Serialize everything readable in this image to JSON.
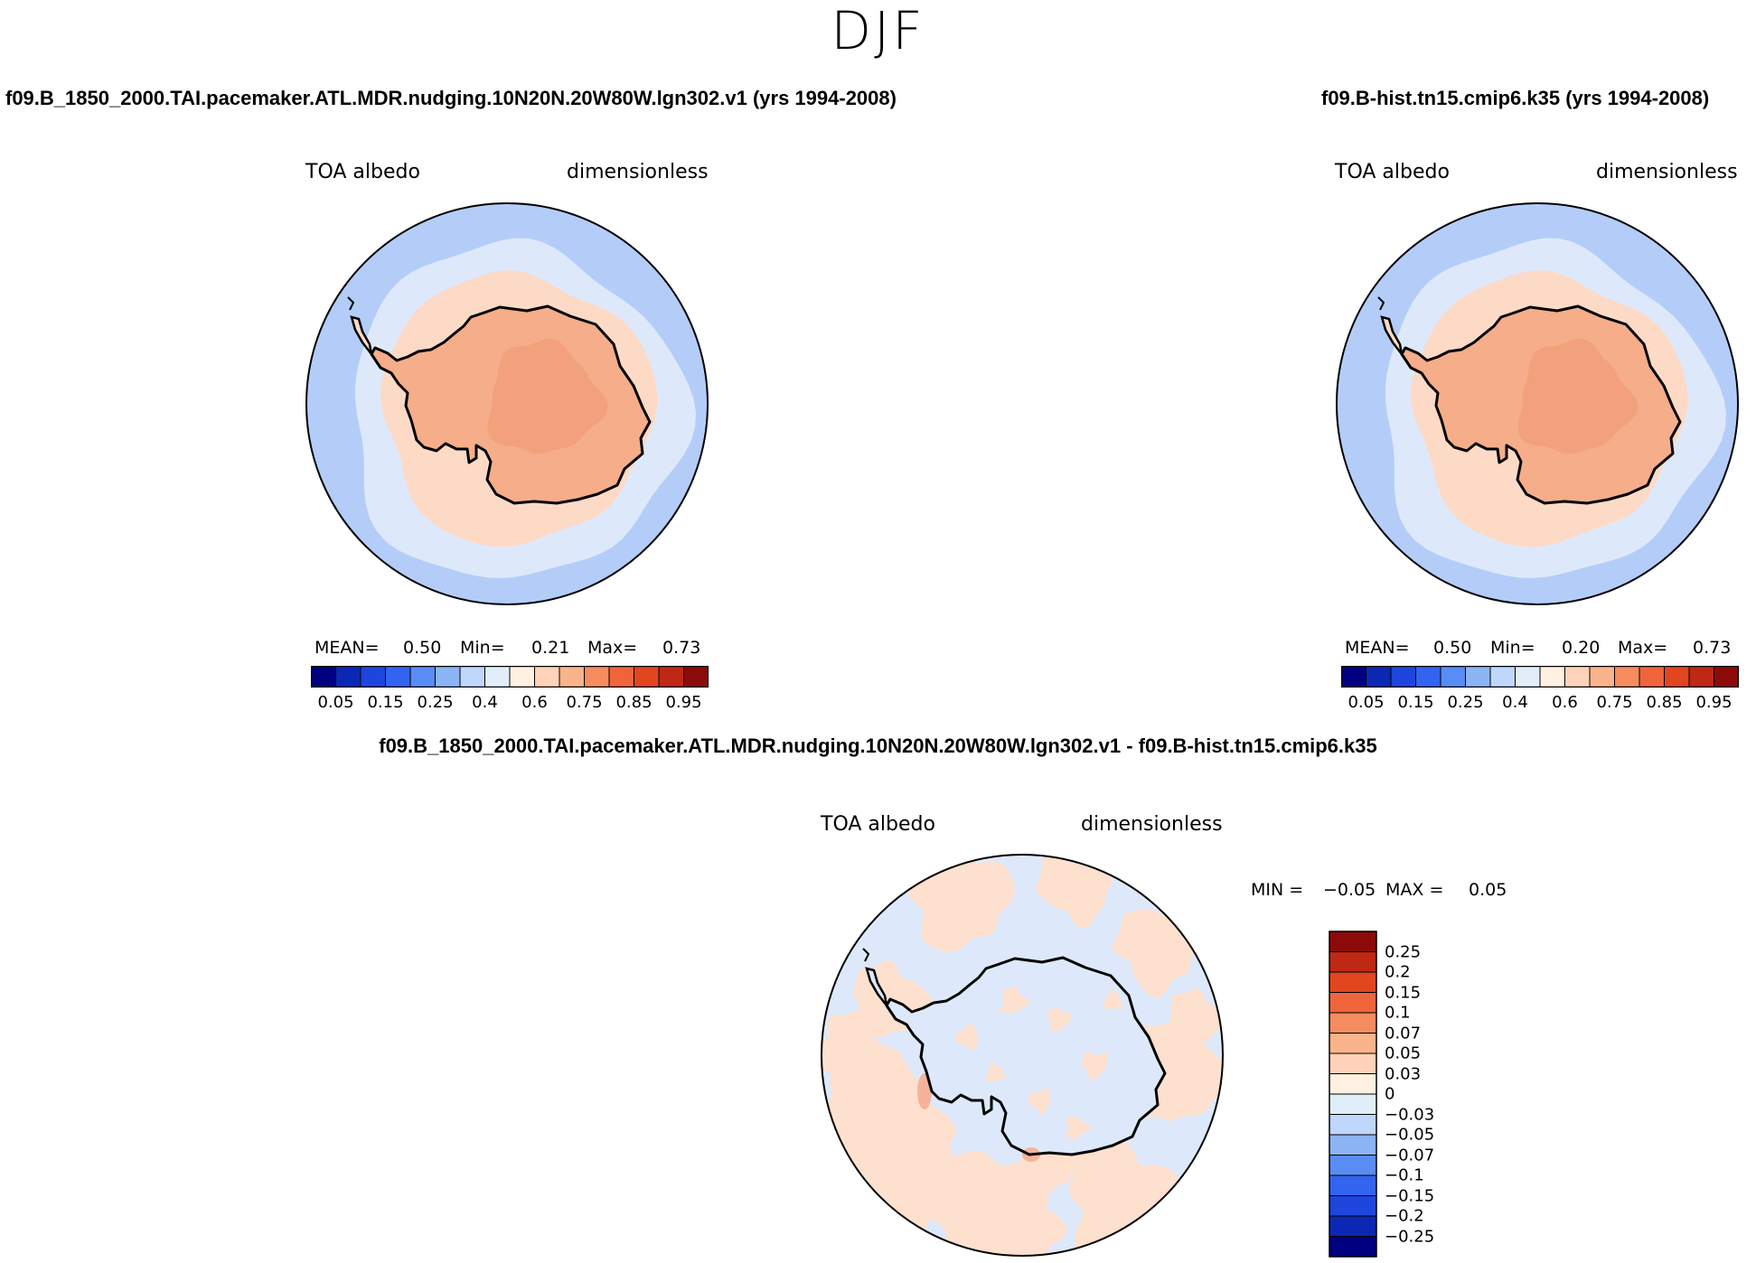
{
  "season": "DJF",
  "variable_label": "TOA albedo",
  "units_label": "dimensionless",
  "panels": [
    {
      "case": "f09.B_1850_2000.TAI.pacemaker.ATL.MDR.nudging.10N20N.20W80W.lgn302.v1 (yrs 1994-2008)",
      "stats": {
        "mean_label": "MEAN=",
        "mean": "0.50",
        "min_label": "Min=",
        "min": "0.21",
        "max_label": "Max=",
        "max": "0.73"
      }
    },
    {
      "case": "f09.B-hist.tn15.cmip6.k35 (yrs 1994-2008)",
      "stats": {
        "mean_label": "MEAN=",
        "mean": "0.50",
        "min_label": "Min=",
        "min": "0.20",
        "max_label": "Max=",
        "max": "0.73"
      }
    }
  ],
  "diff": {
    "title": "f09.B_1850_2000.TAI.pacemaker.ATL.MDR.nudging.10N20N.20W80W.lgn302.v1 - f09.B-hist.tn15.cmip6.k35",
    "min_label": "MIN =",
    "min": "−0.05",
    "max_label": "MAX =",
    "max": "0.05"
  },
  "colorbar_abs": {
    "colors": [
      "#000080",
      "#0a28b4",
      "#1e46dc",
      "#3264f0",
      "#5a8cf5",
      "#8cb4f5",
      "#bed7fa",
      "#e1eefa",
      "#fff0e1",
      "#ffd2b9",
      "#fab48c",
      "#f58c5f",
      "#f0643c",
      "#e1461e",
      "#be2814",
      "#8c0a0a"
    ],
    "labels": [
      "0.05",
      "0.15",
      "0.25",
      "0.4",
      "0.6",
      "0.75",
      "0.85",
      "0.95"
    ]
  },
  "colorbar_diff": {
    "colors": [
      "#8c0a0a",
      "#be2814",
      "#e1461e",
      "#f0643c",
      "#f58c5f",
      "#fab48c",
      "#ffd2b9",
      "#fff0e1",
      "#e1eefa",
      "#bed7fa",
      "#8cb4f5",
      "#5a8cf5",
      "#3264f0",
      "#1e46dc",
      "#0a28b4",
      "#000080"
    ],
    "labels": [
      "0.25",
      "0.2",
      "0.15",
      "0.1",
      "0.07",
      "0.05",
      "0.03",
      "0",
      "−0.03",
      "−0.05",
      "−0.07",
      "−0.1",
      "−0.15",
      "−0.2",
      "−0.25"
    ]
  },
  "map_colors": {
    "outer_ocean": "#b4cdf8",
    "inner_ocean": "#dde9fb",
    "coast_ice": "#fcdac6",
    "land": "#f5ad8a",
    "interior": "#f3a07c",
    "diff_base": "#dde9fb",
    "diff_pos": "#fde0cd",
    "diff_pos2": "#f6b399",
    "coastline": "#000000"
  }
}
